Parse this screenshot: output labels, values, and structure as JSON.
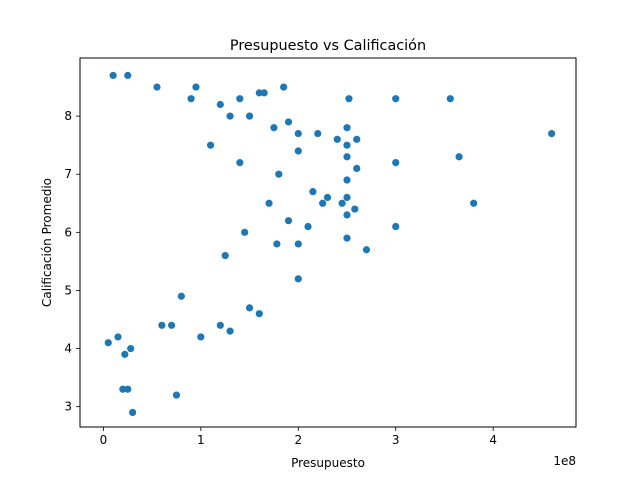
{
  "chart_data": {
    "type": "scatter",
    "title": "Presupuesto vs Calificación",
    "xlabel": "Presupuesto",
    "ylabel": "Calificación Promedio",
    "x_offset_label": "1e8",
    "x_tick_values": [
      0,
      100000000,
      200000000,
      300000000,
      400000000
    ],
    "x_tick_labels": [
      "0",
      "1",
      "2",
      "3",
      "4"
    ],
    "y_ticks": [
      3,
      4,
      5,
      6,
      7,
      8
    ],
    "xlim": [
      -24000000,
      485000000
    ],
    "ylim": [
      2.65,
      9.0
    ],
    "grid": false,
    "legend": "none",
    "marker_color": "#1f77b4",
    "series": [
      {
        "points": [
          [
            460000000,
            7.7
          ],
          [
            380000000,
            6.5
          ],
          [
            365000000,
            7.3
          ],
          [
            356000000,
            8.3
          ],
          [
            300000000,
            8.3
          ],
          [
            300000000,
            7.2
          ],
          [
            300000000,
            6.1
          ],
          [
            270000000,
            5.7
          ],
          [
            260000000,
            7.1
          ],
          [
            260000000,
            7.6
          ],
          [
            258000000,
            6.4
          ],
          [
            252000000,
            8.3
          ],
          [
            250000000,
            7.8
          ],
          [
            250000000,
            7.5
          ],
          [
            250000000,
            7.3
          ],
          [
            250000000,
            6.9
          ],
          [
            250000000,
            6.6
          ],
          [
            250000000,
            6.3
          ],
          [
            250000000,
            5.9
          ],
          [
            245000000,
            6.5
          ],
          [
            240000000,
            7.6
          ],
          [
            230000000,
            6.6
          ],
          [
            225000000,
            6.5
          ],
          [
            220000000,
            7.7
          ],
          [
            215000000,
            6.7
          ],
          [
            210000000,
            6.1
          ],
          [
            200000000,
            5.2
          ],
          [
            200000000,
            5.8
          ],
          [
            200000000,
            7.7
          ],
          [
            200000000,
            7.4
          ],
          [
            190000000,
            7.9
          ],
          [
            190000000,
            6.2
          ],
          [
            185000000,
            8.5
          ],
          [
            180000000,
            7.0
          ],
          [
            178000000,
            5.8
          ],
          [
            175000000,
            7.8
          ],
          [
            170000000,
            6.5
          ],
          [
            165000000,
            8.4
          ],
          [
            160000000,
            4.6
          ],
          [
            150000000,
            4.7
          ],
          [
            150000000,
            8.0
          ],
          [
            145000000,
            6.0
          ],
          [
            140000000,
            7.2
          ],
          [
            130000000,
            4.3
          ],
          [
            125000000,
            5.6
          ],
          [
            120000000,
            4.4
          ],
          [
            120000000,
            8.2
          ],
          [
            110000000,
            7.5
          ],
          [
            100000000,
            4.2
          ],
          [
            75000000,
            3.2
          ],
          [
            30000000,
            2.9
          ],
          [
            25000000,
            3.3
          ],
          [
            20000000,
            3.3
          ],
          [
            22000000,
            3.9
          ],
          [
            28000000,
            4.0
          ],
          [
            15000000,
            4.2
          ],
          [
            5000000,
            4.1
          ],
          [
            60000000,
            4.4
          ],
          [
            70000000,
            4.4
          ],
          [
            80000000,
            4.9
          ],
          [
            10000000,
            8.7
          ],
          [
            25000000,
            8.7
          ],
          [
            55000000,
            8.5
          ],
          [
            95000000,
            8.5
          ],
          [
            90000000,
            8.3
          ],
          [
            160000000,
            8.4
          ],
          [
            140000000,
            8.3
          ],
          [
            130000000,
            8.0
          ]
        ]
      }
    ]
  }
}
